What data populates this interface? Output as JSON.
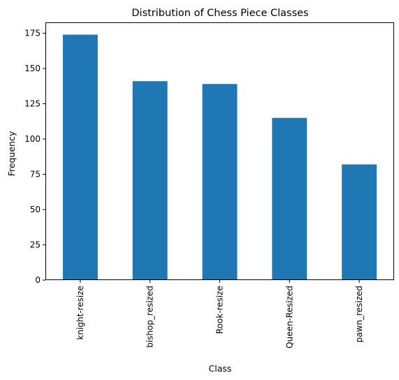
{
  "chart_data": {
    "type": "bar",
    "title": "Distribution of Chess Piece Classes",
    "xlabel": "Class",
    "ylabel": "Frequency",
    "categories": [
      "knight-resize",
      "bishop_resized",
      "Rook-resize",
      "Queen-Resized",
      "pawn_resized"
    ],
    "values": [
      174,
      141,
      139,
      115,
      82
    ],
    "ylim": [
      0,
      182.7
    ],
    "yticks": [
      0,
      25,
      50,
      75,
      100,
      125,
      150,
      175
    ],
    "bar_color": "#1f77b4",
    "grid": false,
    "legend": "none"
  }
}
